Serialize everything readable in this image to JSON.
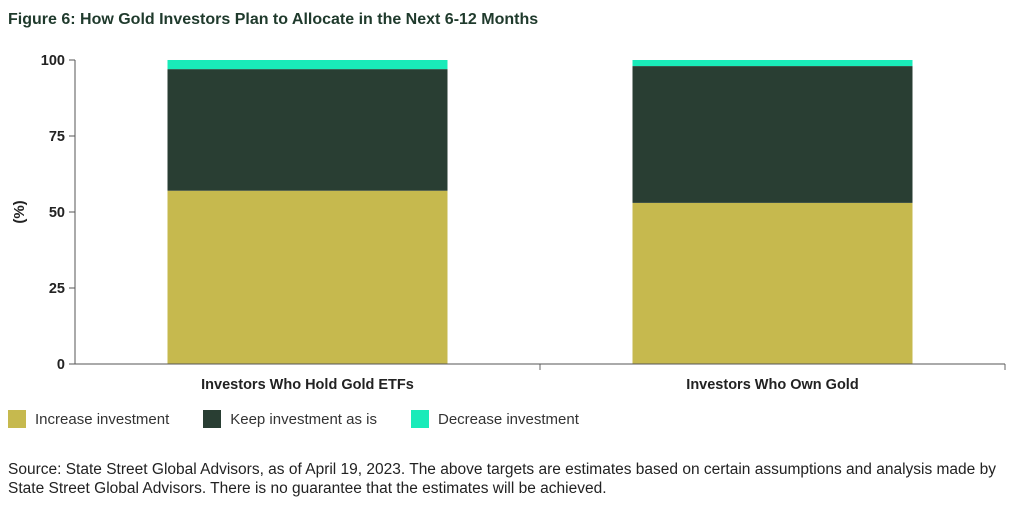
{
  "title": "Figure 6: How Gold Investors Plan to Allocate in the Next 6-12 Months",
  "source_note": "Source: State Street Global Advisors, as of April 19, 2023. The above targets are estimates based on certain assumptions and analysis made by State Street Global Advisors. There is no guarantee that the estimates will be achieved.",
  "chart_data": {
    "type": "bar",
    "stacked": true,
    "categories": [
      "Investors Who Hold Gold ETFs",
      "Investors Who Own Gold"
    ],
    "series": [
      {
        "name": "Increase investment",
        "color": "#c6b94e",
        "values": [
          57,
          53
        ]
      },
      {
        "name": "Keep investment as is",
        "color": "#293e33",
        "values": [
          40,
          45
        ]
      },
      {
        "name": "Decrease investment",
        "color": "#19ebb9",
        "values": [
          3,
          2
        ]
      }
    ],
    "ylabel": "(%)",
    "xlabel": "",
    "ylim": [
      0,
      100
    ],
    "yticks": [
      0,
      25,
      50,
      75,
      100
    ],
    "grid": false,
    "legend_position": "bottom-left"
  }
}
